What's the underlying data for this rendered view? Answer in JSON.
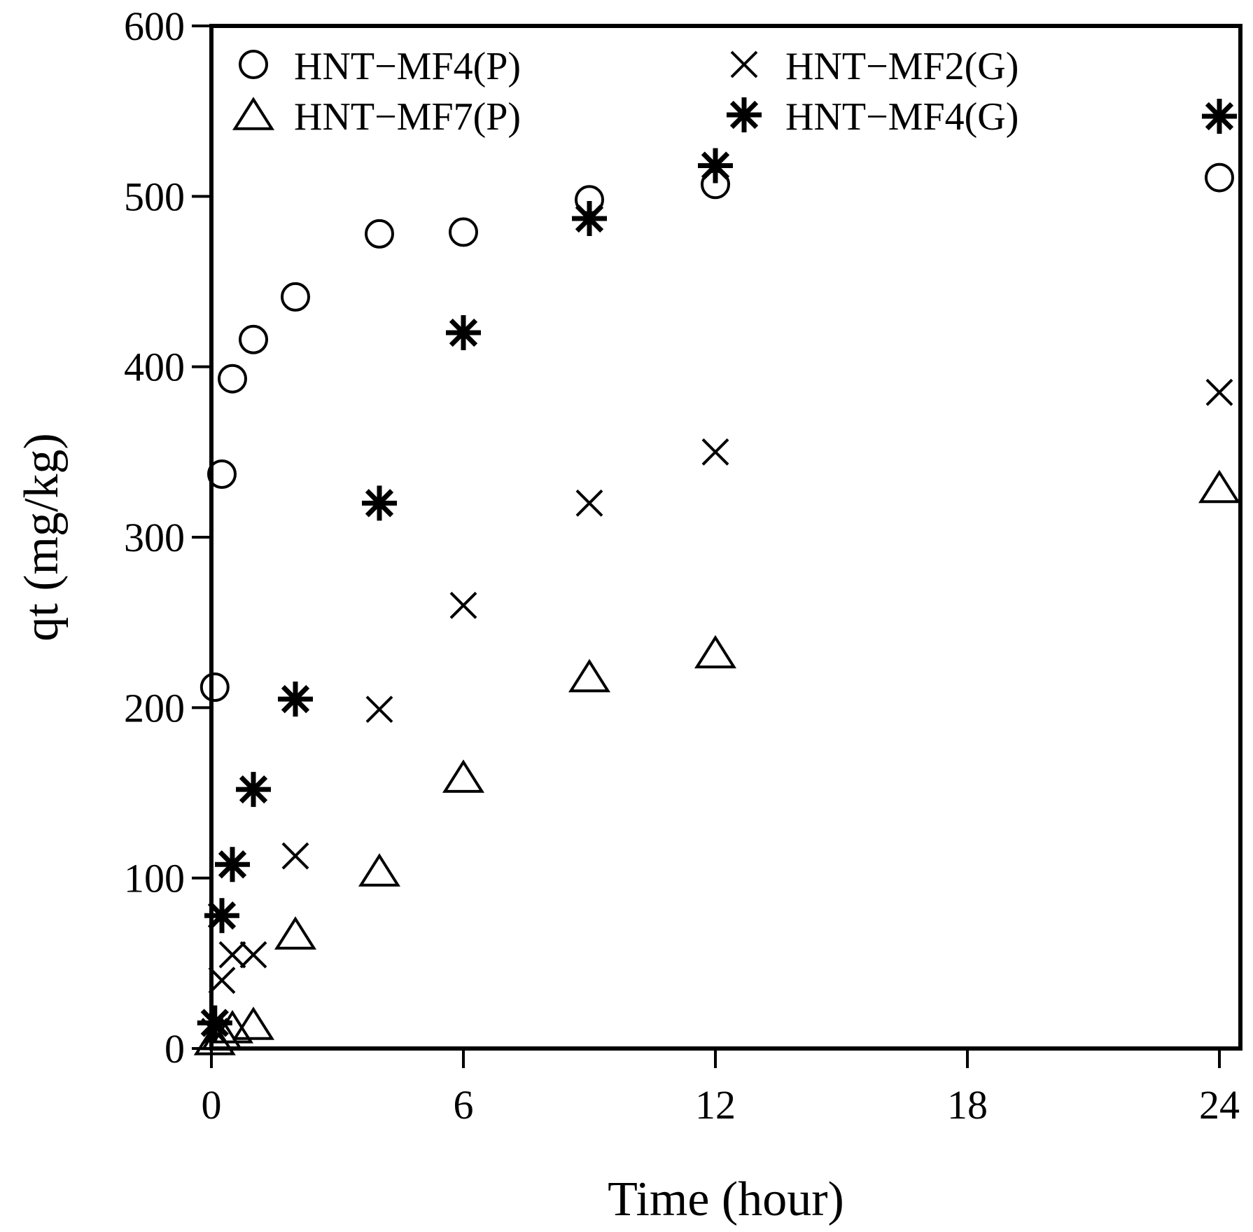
{
  "chart_data": {
    "type": "scatter",
    "title": "",
    "xlabel": "Time (hour)",
    "ylabel": "qt (mg/kg)",
    "xlim": [
      0,
      24.5
    ],
    "ylim": [
      0,
      600
    ],
    "xticks": [
      0,
      6,
      12,
      18,
      24
    ],
    "yticks": [
      0,
      100,
      200,
      300,
      400,
      500,
      600
    ],
    "grid": false,
    "legend_position": "top",
    "series": [
      {
        "name": "HNT−MF4(P)",
        "marker": "circle",
        "x": [
          0.08,
          0.25,
          0.5,
          1,
          2,
          4,
          6,
          9,
          12,
          24
        ],
        "y": [
          212,
          337,
          393,
          416,
          441,
          478,
          479,
          498,
          507,
          511
        ]
      },
      {
        "name": "HNT−MF7(P)",
        "marker": "triangle",
        "x": [
          0.08,
          0.25,
          0.5,
          1,
          2,
          4,
          6,
          9,
          12,
          24
        ],
        "y": [
          5,
          8,
          12,
          14,
          67,
          104,
          159,
          218,
          232,
          329
        ]
      },
      {
        "name": "HNT−MF2(G)",
        "marker": "x",
        "x": [
          0.08,
          0.25,
          0.5,
          1,
          2,
          4,
          6,
          9,
          12,
          24
        ],
        "y": [
          10,
          40,
          55,
          55,
          113,
          199,
          260,
          320,
          350,
          385
        ]
      },
      {
        "name": "HNT−MF4(G)",
        "marker": "asterisk",
        "x": [
          0.08,
          0.25,
          0.5,
          1,
          2,
          4,
          6,
          9,
          12,
          24
        ],
        "y": [
          15,
          78,
          108,
          152,
          205,
          320,
          420,
          487,
          518,
          547
        ]
      }
    ]
  }
}
